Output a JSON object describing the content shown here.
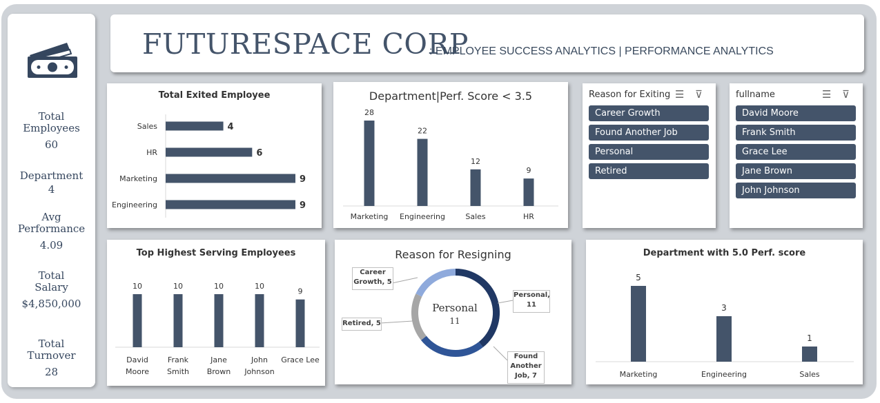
{
  "header": {
    "company": "FUTURESPACE CORP",
    "subtitle": ": EMPLOYEE SUCCESS ANALYTICS | PERFORMANCE ANALYTICS"
  },
  "sidebar": {
    "icon": "money-icon",
    "kpis": [
      {
        "label_lines": [
          "Total",
          "Employees"
        ],
        "value": "60"
      },
      {
        "label_lines": [
          "Department"
        ],
        "value": "4"
      },
      {
        "label_lines": [
          "Avg",
          "Performance"
        ],
        "value": "4.09"
      },
      {
        "label_lines": [
          "Total",
          "Salary"
        ],
        "value": "$4,850,000"
      },
      {
        "label_lines": [
          "Total",
          "Turnover"
        ],
        "value": "28"
      }
    ]
  },
  "colors": {
    "bar": "#44546a",
    "accent_navy": "#203864",
    "accent_blue": "#2f5597",
    "accent_light": "#8faadc",
    "grey": "#a6a6a6"
  },
  "chart_data": [
    {
      "id": "exited",
      "type": "bar",
      "orientation": "horizontal",
      "title": "Total Exited Employee",
      "categories": [
        "Sales",
        "HR",
        "Marketing",
        "Engineering"
      ],
      "values": [
        4,
        6,
        9,
        9
      ],
      "xlim": [
        0,
        9
      ]
    },
    {
      "id": "perf_low",
      "type": "bar",
      "title": "Department|Perf. Score < 3.5",
      "categories": [
        "Marketing",
        "Engineering",
        "Sales",
        "HR"
      ],
      "values": [
        28,
        22,
        12,
        9
      ],
      "ylim": [
        0,
        28
      ]
    },
    {
      "id": "serving",
      "type": "bar",
      "title": "Top Highest Serving Employees",
      "categories": [
        [
          "David",
          "Moore"
        ],
        [
          "Frank",
          "Smith"
        ],
        [
          "Jane",
          "Brown"
        ],
        [
          "John",
          "Johnson"
        ],
        [
          "Grace Lee"
        ]
      ],
      "values": [
        10,
        10,
        10,
        10,
        9
      ],
      "ylim": [
        0,
        10
      ]
    },
    {
      "id": "resign",
      "type": "pie",
      "title": "Reason for Resigning",
      "center_label": "Personal",
      "center_value": "11",
      "slices": [
        {
          "label_lines": [
            "Personal,",
            "11"
          ],
          "value": 11,
          "color": "#203864"
        },
        {
          "label_lines": [
            "Found",
            "Another",
            "Job, 7"
          ],
          "value": 7,
          "color": "#2f5597"
        },
        {
          "label_lines": [
            "Retired, 5"
          ],
          "value": 5,
          "color": "#a6a6a6"
        },
        {
          "label_lines": [
            "Career",
            "Growth, 5"
          ],
          "value": 5,
          "color": "#8faadc"
        }
      ]
    },
    {
      "id": "perf_top",
      "type": "bar",
      "title": "Department with 5.0 Perf. score",
      "categories": [
        "Marketing",
        "Engineering",
        "Sales"
      ],
      "values": [
        5,
        3,
        1
      ],
      "ylim": [
        0,
        5
      ]
    }
  ],
  "slicers": [
    {
      "title": "Reason for Exiting",
      "items": [
        "Career Growth",
        "Found Another Job",
        "Personal",
        "Retired"
      ]
    },
    {
      "title": "fullname",
      "items": [
        "David Moore",
        "Frank Smith",
        "Grace Lee",
        "Jane Brown",
        "John Johnson"
      ]
    }
  ]
}
